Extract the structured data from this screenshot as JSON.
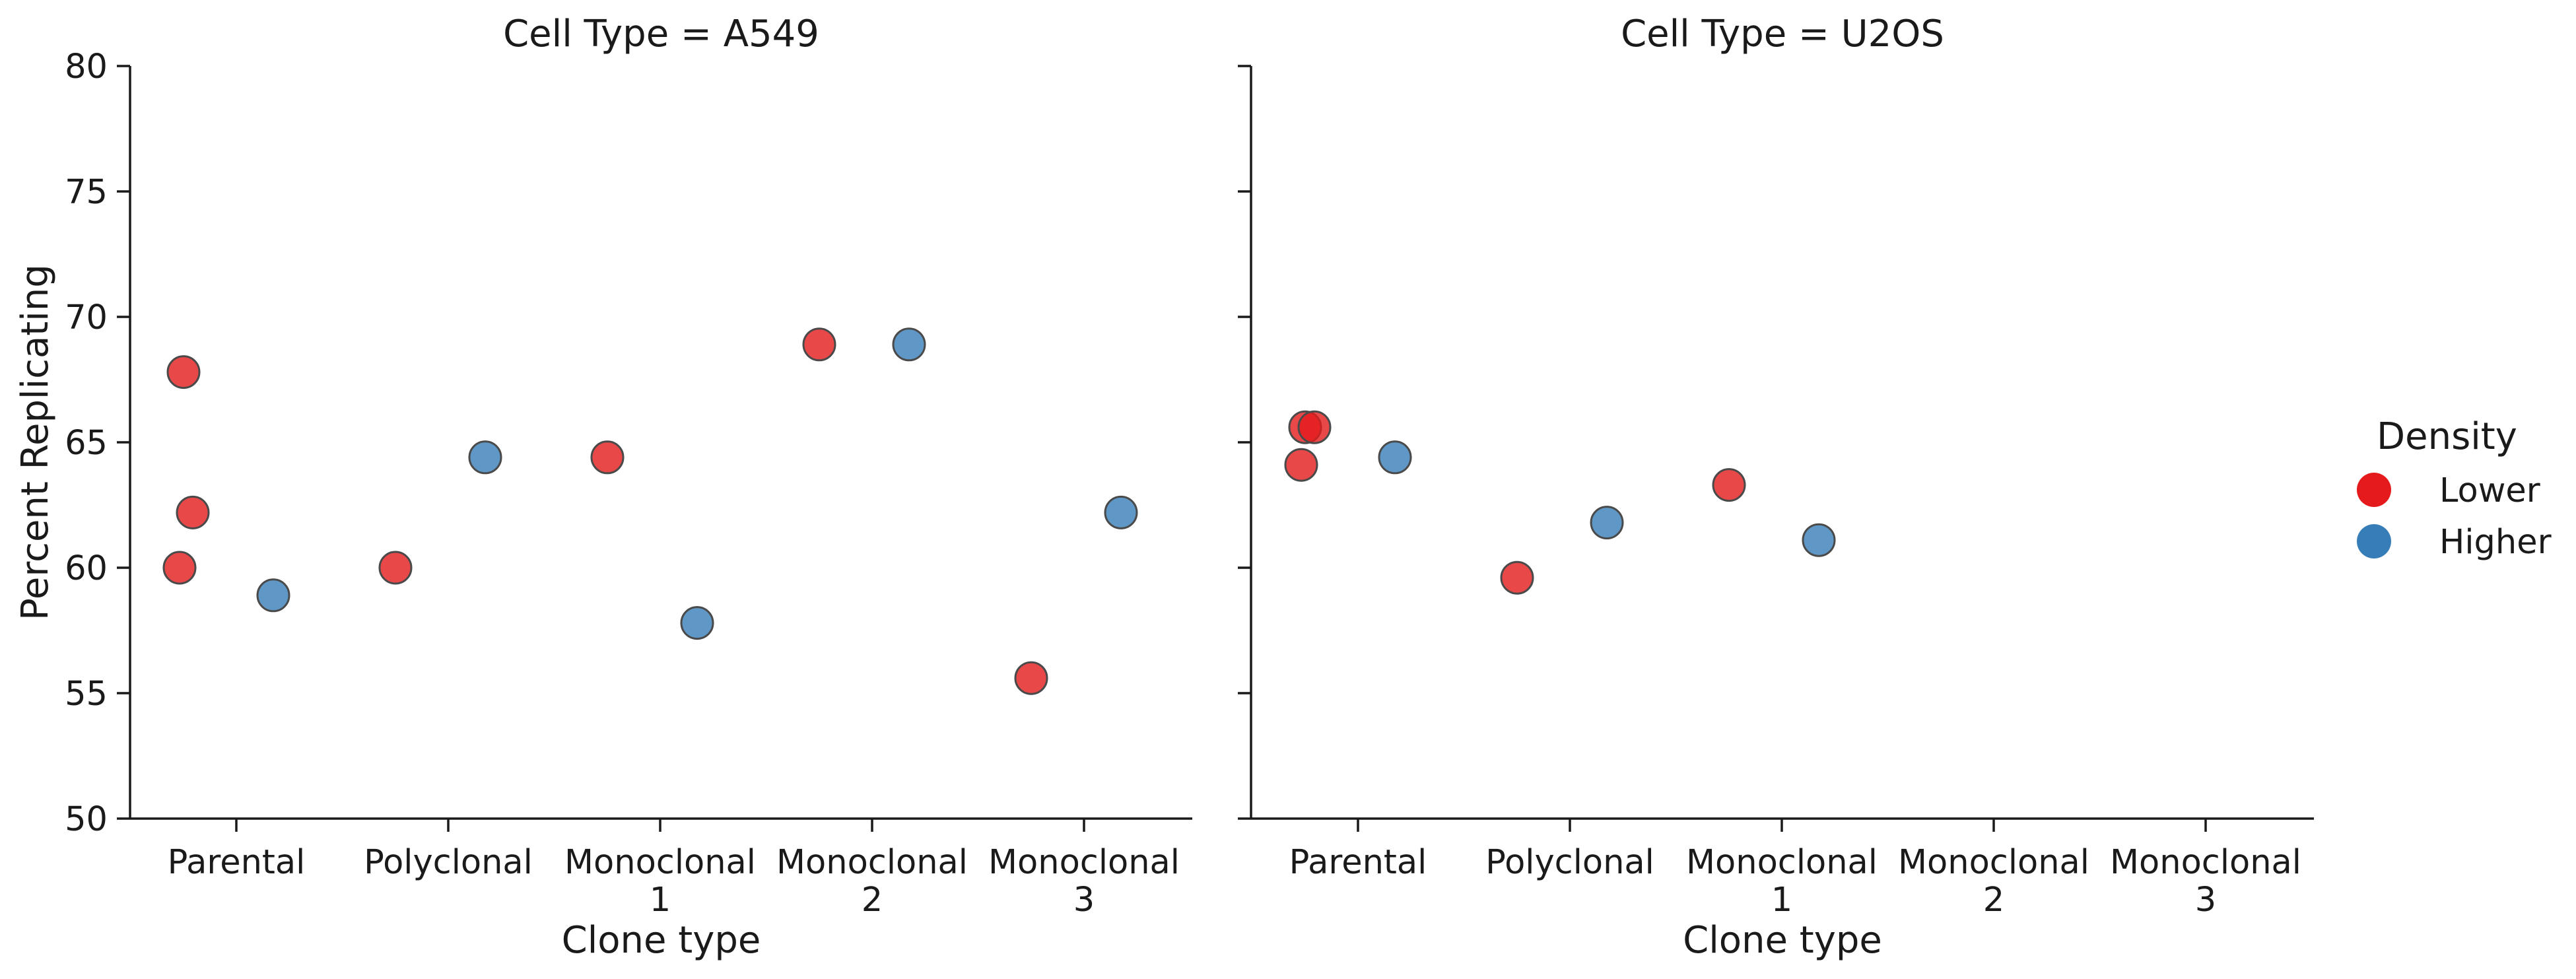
{
  "chart_data": {
    "type": "scatter",
    "ylabel": "Percent Replicating",
    "ylim": [
      50,
      80
    ],
    "yticks": [
      50,
      55,
      60,
      65,
      70,
      75,
      80
    ],
    "grid": false,
    "legend": {
      "title": "Density",
      "placement": "right",
      "entries": [
        {
          "name": "Lower",
          "color": "#e41a1c"
        },
        {
          "name": "Higher",
          "color": "#377eb8"
        }
      ]
    },
    "categories": [
      "Parental",
      "Polyclonal",
      "Monoclonal\n1",
      "Monoclonal\n2",
      "Monoclonal\n3"
    ],
    "panels": [
      {
        "title": "Cell Type = A549",
        "xlabel": "Clone type",
        "series": [
          {
            "name": "Lower",
            "points": [
              {
                "x": "Parental",
                "y": 67.8
              },
              {
                "x": "Parental",
                "y": 62.2
              },
              {
                "x": "Parental",
                "y": 60.0
              },
              {
                "x": "Polyclonal",
                "y": 60.0
              },
              {
                "x": "Monoclonal\n1",
                "y": 64.4
              },
              {
                "x": "Monoclonal\n2",
                "y": 68.9
              },
              {
                "x": "Monoclonal\n3",
                "y": 55.6
              }
            ]
          },
          {
            "name": "Higher",
            "points": [
              {
                "x": "Parental",
                "y": 58.9
              },
              {
                "x": "Polyclonal",
                "y": 64.4
              },
              {
                "x": "Monoclonal\n1",
                "y": 57.8
              },
              {
                "x": "Monoclonal\n2",
                "y": 68.9
              },
              {
                "x": "Monoclonal\n3",
                "y": 62.2
              }
            ]
          }
        ]
      },
      {
        "title": "Cell Type = U2OS",
        "xlabel": "Clone type",
        "series": [
          {
            "name": "Lower",
            "points": [
              {
                "x": "Parental",
                "y": 65.6
              },
              {
                "x": "Parental",
                "y": 65.6
              },
              {
                "x": "Parental",
                "y": 64.1
              },
              {
                "x": "Polyclonal",
                "y": 59.6
              },
              {
                "x": "Monoclonal\n1",
                "y": 63.3
              }
            ]
          },
          {
            "name": "Higher",
            "points": [
              {
                "x": "Parental",
                "y": 64.4
              },
              {
                "x": "Polyclonal",
                "y": 61.8
              },
              {
                "x": "Monoclonal\n1",
                "y": 61.1
              }
            ]
          }
        ]
      }
    ]
  }
}
